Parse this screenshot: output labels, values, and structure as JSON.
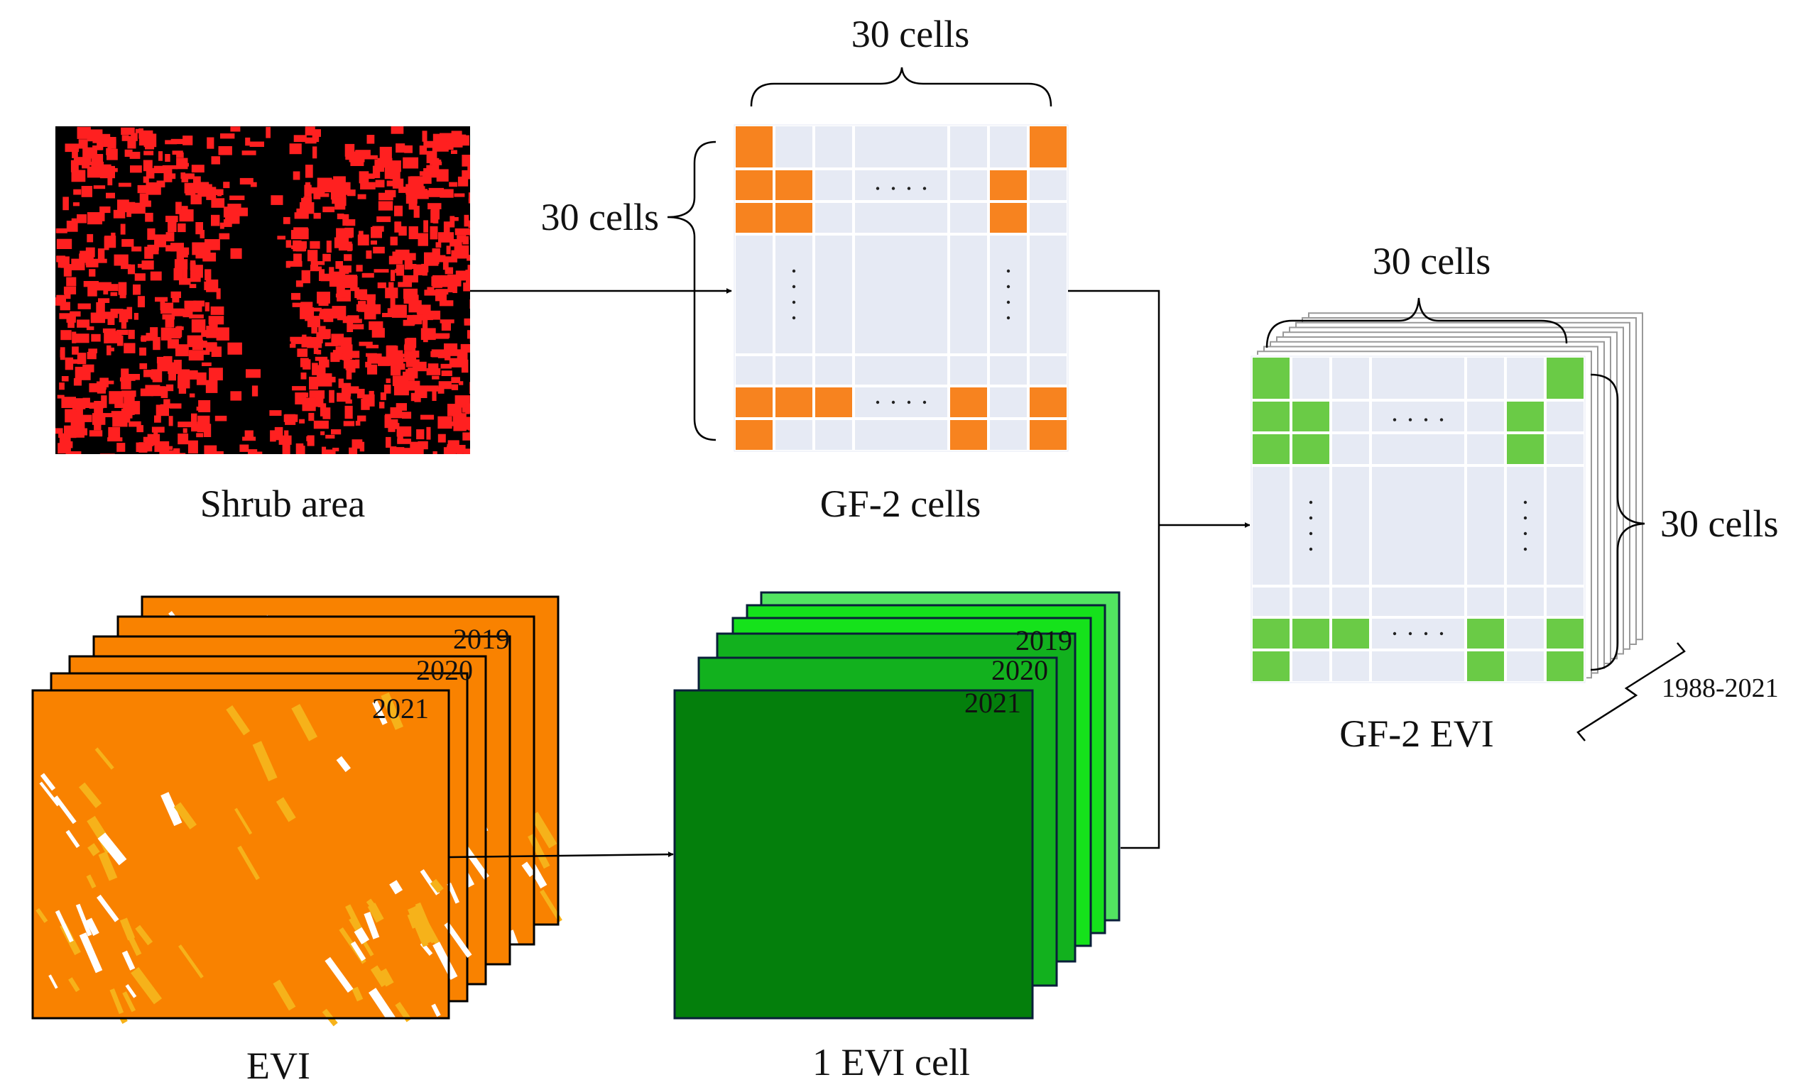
{
  "labels": {
    "shrub_area": "Shrub area",
    "gf2_cells": "GF-2 cells",
    "evi": "EVI",
    "one_evi_cell": "1 EVI cell",
    "gf2_evi": "GF-2 EVI",
    "cells_top": "30 cells",
    "cells_left": "30 cells",
    "cells_evi_top": "30 cells",
    "cells_evi_right": "30 cells",
    "year_range": "1988-2021"
  },
  "evi_years": [
    "2019",
    "2020",
    "2021"
  ],
  "cell_years": [
    "2019",
    "2020",
    "2021"
  ],
  "colors": {
    "shrub_bg": "#000000",
    "shrub_patch": "#ff2020",
    "grid_bg": "#e6eaf4",
    "orange_cell": "#f7831f",
    "green_cell": "#6acb46",
    "evi_orange": "#f98200",
    "evi_yellow": "#f6b21a",
    "evi_dark_green": "#047f0c",
    "evi_green": "#12b11e",
    "evi_bright": "#15e21b",
    "evi_light": "#52e461"
  },
  "grid": {
    "rows": 8,
    "cols": 8,
    "orange_cells": [
      [
        0,
        0
      ],
      [
        0,
        7
      ],
      [
        1,
        0
      ],
      [
        1,
        1
      ],
      [
        1,
        6
      ],
      [
        2,
        0
      ],
      [
        2,
        1
      ],
      [
        2,
        6
      ],
      [
        6,
        0
      ],
      [
        6,
        1
      ],
      [
        6,
        2
      ],
      [
        6,
        5
      ],
      [
        6,
        7
      ],
      [
        7,
        0
      ],
      [
        7,
        5
      ],
      [
        7,
        7
      ]
    ],
    "green_cells": [
      [
        0,
        0
      ],
      [
        0,
        7
      ],
      [
        1,
        0
      ],
      [
        1,
        1
      ],
      [
        1,
        6
      ],
      [
        2,
        0
      ],
      [
        2,
        1
      ],
      [
        2,
        6
      ],
      [
        6,
        0
      ],
      [
        6,
        1
      ],
      [
        6,
        2
      ],
      [
        6,
        5
      ],
      [
        6,
        7
      ],
      [
        7,
        0
      ],
      [
        7,
        5
      ],
      [
        7,
        7
      ]
    ]
  }
}
